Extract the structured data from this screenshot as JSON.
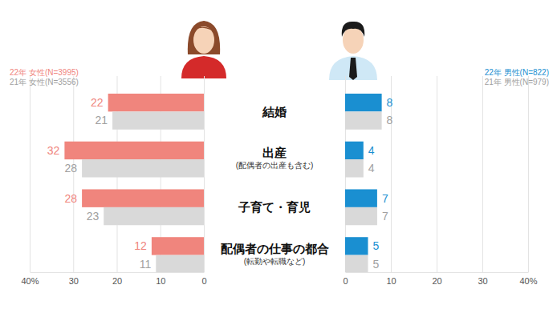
{
  "chart_data": {
    "type": "bar",
    "orientation": "horizontal",
    "data_labels": true,
    "grid": true,
    "categories": [
      "結婚",
      "出産\n(配偶者の出産も含む)",
      "子育て・育児",
      "配偶者の仕事の都合\n(転勤や転職など)"
    ],
    "series": [
      {
        "name": "22年 女性(N=3995)",
        "color": "#f0857d",
        "values": [
          22,
          32,
          28,
          12
        ]
      },
      {
        "name": "21年 女性(N=3556)",
        "color": "#d9d9d9",
        "values": [
          21,
          28,
          23,
          11
        ]
      },
      {
        "name": "22年 男性(N=822)",
        "color": "#1a8fd1",
        "values": [
          8,
          4,
          7,
          5
        ],
        "axis": "x2"
      },
      {
        "name": "21年 男性(N=979)",
        "color": "#d9d9d9",
        "values": [
          8,
          4,
          7,
          5
        ],
        "axis": "x2"
      }
    ],
    "xlim": [
      0,
      40
    ],
    "xticks": [
      0,
      10,
      20,
      30,
      {
        "value": 40,
        "label": "40%"
      }
    ],
    "x2lim": [
      0,
      40
    ],
    "x2ticks": [
      0,
      10,
      20,
      30,
      {
        "value": 40,
        "label": "40%"
      }
    ]
  }
}
